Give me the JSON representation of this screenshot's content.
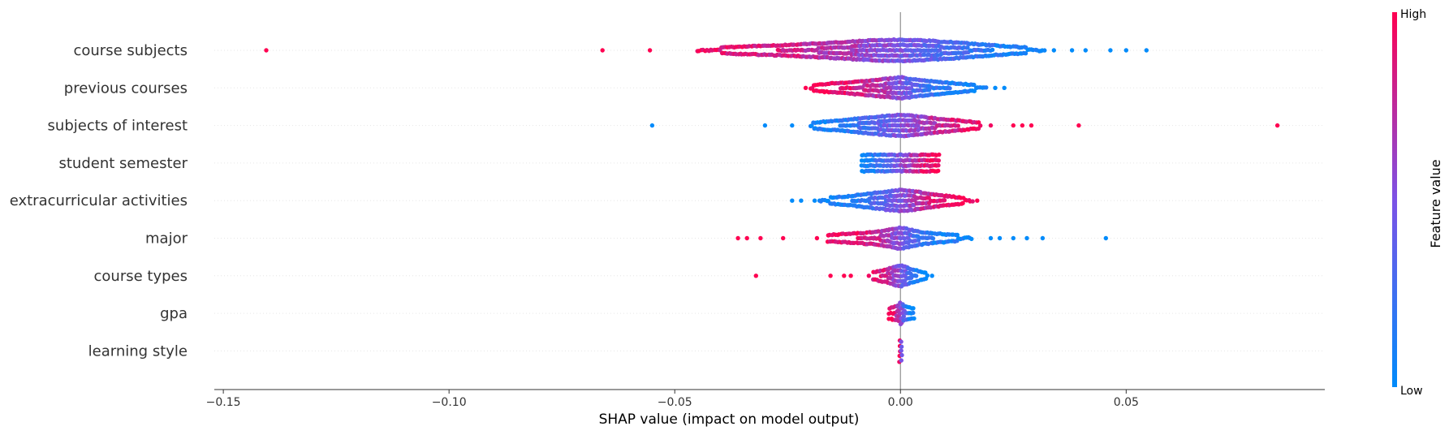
{
  "chart_data": {
    "type": "scatter",
    "subtype": "shap-beeswarm",
    "title": "",
    "xlabel": "SHAP value (impact on model output)",
    "ylabel": "",
    "xlim": [
      -0.152,
      0.094
    ],
    "xticks": [
      -0.15,
      -0.1,
      -0.05,
      0.0,
      0.05
    ],
    "xtick_labels": [
      "−0.15",
      "−0.10",
      "−0.05",
      "0.00",
      "0.05"
    ],
    "grid": false,
    "colors": {
      "high": "#ff0051",
      "low": "#008bfb",
      "mid": "#7c52e6",
      "zero_line": "#999999",
      "row_guide": "#e6e6e6"
    },
    "colorbar": {
      "title": "Feature value",
      "high_label": "High",
      "low_label": "Low",
      "placement": "right"
    },
    "features": [
      {
        "name": "course subjects",
        "points": [
          [
            -0.1405,
            1.0
          ],
          [
            -0.066,
            1.0
          ],
          [
            -0.0555,
            1.0
          ],
          [
            -0.044,
            0.95
          ],
          [
            -0.04,
            0.9
          ],
          [
            -0.036,
            0.9
          ],
          [
            -0.033,
            0.85
          ],
          [
            -0.03,
            0.8
          ],
          [
            -0.025,
            0.85
          ],
          [
            -0.02,
            0.75
          ],
          [
            -0.015,
            0.7
          ],
          [
            -0.01,
            0.65
          ],
          [
            -0.005,
            0.55
          ],
          [
            0.0,
            0.5
          ],
          [
            0.005,
            0.4
          ],
          [
            0.01,
            0.3
          ],
          [
            0.015,
            0.25
          ],
          [
            0.02,
            0.15
          ],
          [
            0.025,
            0.1
          ],
          [
            0.03,
            0.05
          ],
          [
            0.034,
            0.0
          ],
          [
            0.038,
            0.0
          ],
          [
            0.041,
            0.0
          ],
          [
            0.0465,
            0.0
          ],
          [
            0.05,
            0.0
          ],
          [
            0.0545,
            0.0
          ]
        ],
        "density": [
          [
            -0.045,
            0.2
          ],
          [
            -0.035,
            0.35
          ],
          [
            -0.025,
            0.5
          ],
          [
            -0.018,
            0.65
          ],
          [
            -0.012,
            0.8
          ],
          [
            -0.006,
            0.95
          ],
          [
            0.0,
            1.0
          ],
          [
            0.006,
            0.9
          ],
          [
            0.012,
            0.75
          ],
          [
            0.018,
            0.55
          ],
          [
            0.024,
            0.35
          ],
          [
            0.032,
            0.2
          ]
        ]
      },
      {
        "name": "previous courses",
        "points": [
          [
            -0.021,
            1.0
          ],
          [
            -0.018,
            1.0
          ],
          [
            -0.016,
            0.95
          ],
          [
            -0.012,
            0.9
          ],
          [
            -0.008,
            0.8
          ],
          [
            -0.004,
            0.7
          ],
          [
            0.0,
            0.5
          ],
          [
            0.004,
            0.3
          ],
          [
            0.008,
            0.2
          ],
          [
            0.012,
            0.1
          ],
          [
            0.016,
            0.05
          ],
          [
            0.019,
            0.0
          ],
          [
            0.021,
            0.0
          ],
          [
            0.023,
            0.0
          ]
        ],
        "density": [
          [
            -0.02,
            0.25
          ],
          [
            -0.014,
            0.45
          ],
          [
            -0.008,
            0.65
          ],
          [
            -0.003,
            0.85
          ],
          [
            0.0,
            1.0
          ],
          [
            0.004,
            0.75
          ],
          [
            0.009,
            0.55
          ],
          [
            0.014,
            0.35
          ],
          [
            0.019,
            0.2
          ]
        ]
      },
      {
        "name": "subjects of interest",
        "points": [
          [
            -0.055,
            0.0
          ],
          [
            -0.03,
            0.0
          ],
          [
            -0.024,
            0.0
          ],
          [
            -0.02,
            0.0
          ],
          [
            -0.018,
            0.05
          ],
          [
            -0.015,
            0.1
          ],
          [
            -0.01,
            0.2
          ],
          [
            -0.005,
            0.35
          ],
          [
            0.0,
            0.5
          ],
          [
            0.005,
            0.65
          ],
          [
            0.01,
            0.8
          ],
          [
            0.015,
            0.9
          ],
          [
            0.02,
            0.95
          ],
          [
            0.025,
            1.0
          ],
          [
            0.027,
            1.0
          ],
          [
            0.029,
            1.0
          ],
          [
            0.0395,
            1.0
          ],
          [
            0.0835,
            1.0
          ]
        ],
        "density": [
          [
            -0.02,
            0.25
          ],
          [
            -0.014,
            0.45
          ],
          [
            -0.008,
            0.7
          ],
          [
            -0.003,
            0.9
          ],
          [
            0.0,
            1.0
          ],
          [
            0.004,
            0.85
          ],
          [
            0.008,
            0.65
          ],
          [
            0.013,
            0.45
          ],
          [
            0.018,
            0.25
          ]
        ]
      },
      {
        "name": "student semester",
        "points": [
          [
            -0.0085,
            0.0
          ],
          [
            -0.007,
            0.07
          ],
          [
            -0.0055,
            0.15
          ],
          [
            -0.004,
            0.25
          ],
          [
            -0.0025,
            0.35
          ],
          [
            -0.001,
            0.45
          ],
          [
            0.0005,
            0.55
          ],
          [
            0.002,
            0.65
          ],
          [
            0.0035,
            0.75
          ],
          [
            0.005,
            0.85
          ],
          [
            0.0065,
            0.93
          ],
          [
            0.0085,
            1.0
          ]
        ],
        "density": [
          [
            -0.0085,
            1.0
          ],
          [
            -0.007,
            1.0
          ],
          [
            -0.0055,
            1.0
          ],
          [
            -0.004,
            1.0
          ],
          [
            -0.0025,
            1.0
          ],
          [
            -0.001,
            1.0
          ],
          [
            0.0005,
            1.0
          ],
          [
            0.002,
            1.0
          ],
          [
            0.0035,
            1.0
          ],
          [
            0.005,
            1.0
          ],
          [
            0.0065,
            1.0
          ],
          [
            0.0085,
            1.0
          ]
        ]
      },
      {
        "name": "extracurricular activities",
        "points": [
          [
            -0.024,
            0.0
          ],
          [
            -0.022,
            0.0
          ],
          [
            -0.019,
            0.0
          ],
          [
            -0.016,
            0.05
          ],
          [
            -0.012,
            0.1
          ],
          [
            -0.008,
            0.2
          ],
          [
            -0.004,
            0.35
          ],
          [
            0.0,
            0.5
          ],
          [
            0.004,
            0.7
          ],
          [
            0.008,
            0.85
          ],
          [
            0.012,
            0.95
          ],
          [
            0.015,
            1.0
          ],
          [
            0.017,
            1.0
          ]
        ],
        "density": [
          [
            -0.018,
            0.2
          ],
          [
            -0.012,
            0.4
          ],
          [
            -0.007,
            0.65
          ],
          [
            -0.003,
            0.85
          ],
          [
            0.0,
            1.0
          ],
          [
            0.004,
            0.8
          ],
          [
            0.008,
            0.55
          ],
          [
            0.012,
            0.35
          ],
          [
            0.016,
            0.2
          ]
        ]
      },
      {
        "name": "major",
        "points": [
          [
            -0.036,
            1.0
          ],
          [
            -0.034,
            1.0
          ],
          [
            -0.031,
            1.0
          ],
          [
            -0.026,
            1.0
          ],
          [
            -0.0185,
            1.0
          ],
          [
            -0.015,
            0.95
          ],
          [
            -0.01,
            0.9
          ],
          [
            -0.005,
            0.8
          ],
          [
            0.0,
            0.5
          ],
          [
            0.005,
            0.2
          ],
          [
            0.01,
            0.1
          ],
          [
            0.015,
            0.05
          ],
          [
            0.02,
            0.0
          ],
          [
            0.022,
            0.0
          ],
          [
            0.025,
            0.0
          ],
          [
            0.028,
            0.0
          ],
          [
            0.0315,
            0.0
          ],
          [
            0.0455,
            0.0
          ]
        ],
        "density": [
          [
            -0.016,
            0.3
          ],
          [
            -0.01,
            0.45
          ],
          [
            -0.005,
            0.6
          ],
          [
            0.0,
            1.0
          ],
          [
            0.005,
            0.55
          ],
          [
            0.01,
            0.35
          ],
          [
            0.016,
            0.2
          ]
        ]
      },
      {
        "name": "course types",
        "points": [
          [
            -0.032,
            1.0
          ],
          [
            -0.0155,
            1.0
          ],
          [
            -0.0125,
            1.0
          ],
          [
            -0.011,
            1.0
          ],
          [
            -0.007,
            0.95
          ],
          [
            -0.004,
            0.85
          ],
          [
            -0.001,
            0.6
          ],
          [
            0.001,
            0.4
          ],
          [
            0.003,
            0.15
          ],
          [
            0.005,
            0.0
          ],
          [
            0.007,
            0.0
          ]
        ],
        "density": [
          [
            -0.006,
            0.35
          ],
          [
            -0.003,
            0.6
          ],
          [
            -0.001,
            0.9
          ],
          [
            0.0,
            1.0
          ],
          [
            0.002,
            0.7
          ],
          [
            0.004,
            0.45
          ],
          [
            0.006,
            0.25
          ]
        ]
      },
      {
        "name": "gpa",
        "points": [
          [
            -0.0025,
            1.0
          ],
          [
            -0.0015,
            0.9
          ],
          [
            -0.0005,
            0.7
          ],
          [
            0.0005,
            0.45
          ],
          [
            0.0015,
            0.2
          ],
          [
            0.0025,
            0.0
          ],
          [
            0.003,
            0.0
          ]
        ],
        "density": [
          [
            -0.0025,
            0.5
          ],
          [
            -0.0015,
            0.6
          ],
          [
            -0.0005,
            0.7
          ],
          [
            0.0,
            1.0
          ],
          [
            0.001,
            0.65
          ],
          [
            0.002,
            0.55
          ],
          [
            0.003,
            0.45
          ]
        ]
      },
      {
        "name": "learning style",
        "points": [
          [
            -0.0002,
            1.0
          ],
          [
            0.0,
            0.8
          ],
          [
            0.0003,
            0.4
          ],
          [
            0.0005,
            0.1
          ]
        ],
        "density": [
          [
            -0.0002,
            1.0
          ],
          [
            0.0,
            1.0
          ],
          [
            0.0003,
            0.8
          ],
          [
            0.0005,
            0.5
          ]
        ]
      }
    ]
  }
}
